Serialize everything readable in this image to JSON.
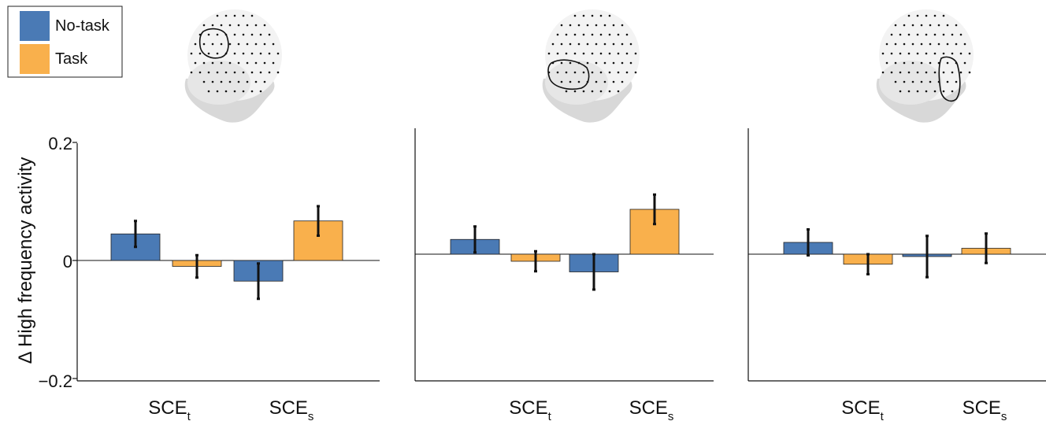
{
  "chart_data": {
    "type": "bar",
    "ylabel": "Δ High frequency activity",
    "ylim": [
      -0.2,
      0.2
    ],
    "y_ticks": [
      "0.2",
      "0",
      "−0.2"
    ],
    "legend": {
      "placement": "top-left",
      "entries": [
        {
          "label": "No-task",
          "color": "#4a7ab5"
        },
        {
          "label": "Task",
          "color": "#f9b04c"
        }
      ]
    },
    "categories": [
      {
        "base": "SCE",
        "sub": "t"
      },
      {
        "base": "SCE",
        "sub": "s"
      }
    ],
    "panels": [
      {
        "region": "left-frontal",
        "series": [
          {
            "name": "No-task",
            "values": [
              0.045,
              -0.035
            ],
            "errors": [
              0.022,
              0.03
            ]
          },
          {
            "name": "Task",
            "values": [
              -0.01,
              0.067
            ],
            "errors": [
              0.019,
              0.025
            ]
          }
        ]
      },
      {
        "region": "left-temporal",
        "series": [
          {
            "name": "No-task",
            "values": [
              0.025,
              -0.03
            ],
            "errors": [
              0.022,
              0.03
            ]
          },
          {
            "name": "Task",
            "values": [
              -0.012,
              0.076
            ],
            "errors": [
              0.017,
              0.025
            ]
          }
        ]
      },
      {
        "region": "left-occipital",
        "series": [
          {
            "name": "No-task",
            "values": [
              0.02,
              -0.004
            ],
            "errors": [
              0.022,
              0.035
            ]
          },
          {
            "name": "Task",
            "values": [
              -0.017,
              0.01
            ],
            "errors": [
              0.017,
              0.025
            ]
          }
        ]
      }
    ]
  }
}
